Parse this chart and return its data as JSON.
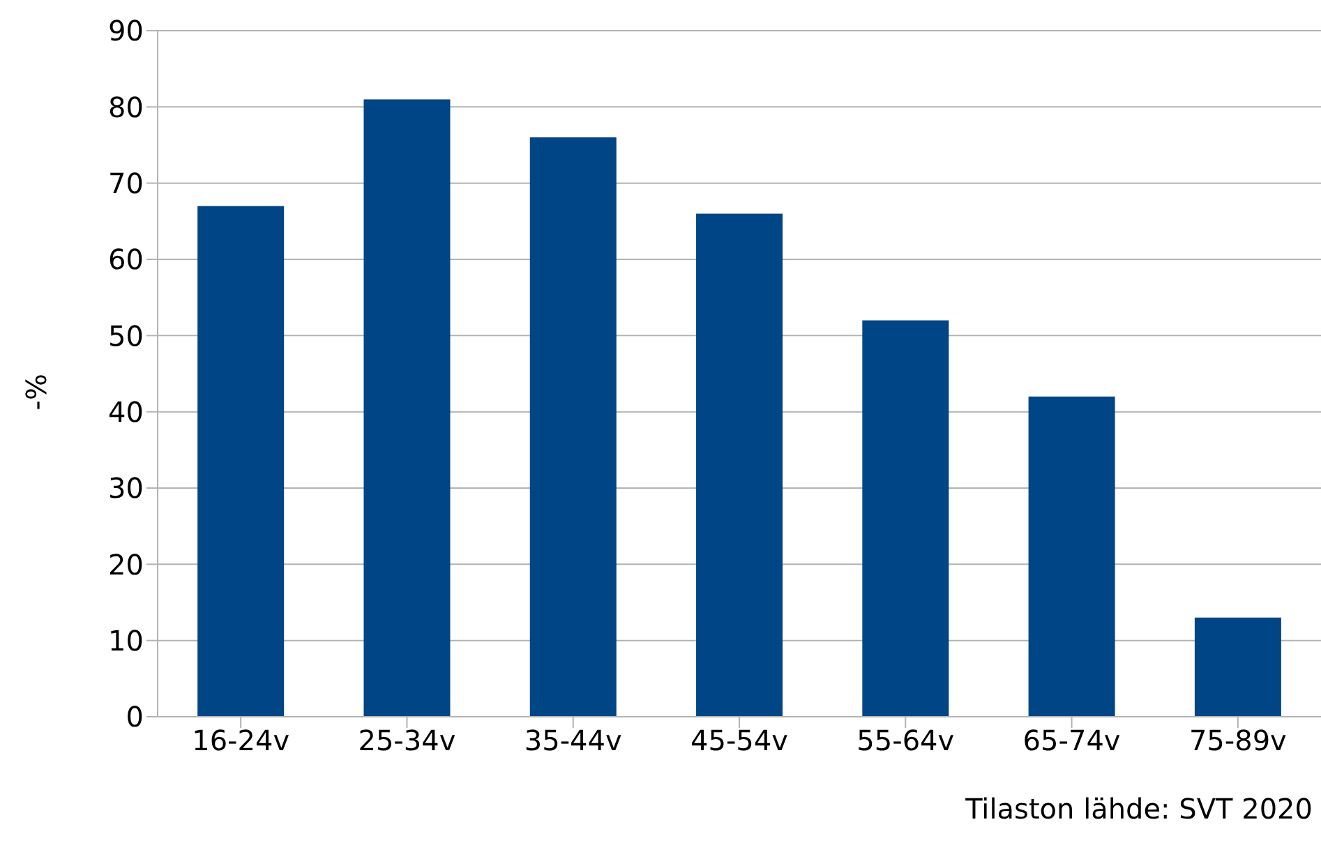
{
  "chart_data": {
    "type": "bar",
    "ylabel": "-%",
    "categories": [
      "16-24v",
      "25-34v",
      "35-44v",
      "45-54v",
      "55-64v",
      "65-74v",
      "75-89v"
    ],
    "values": [
      67,
      81,
      76,
      66,
      52,
      42,
      13
    ],
    "color": "#004586",
    "ylim": [
      0,
      90
    ],
    "yticks": [
      0,
      10,
      20,
      30,
      40,
      50,
      60,
      70,
      80,
      90
    ],
    "grid": "y",
    "annotations": [
      "Tilaston lähde: SVT 2020"
    ]
  }
}
